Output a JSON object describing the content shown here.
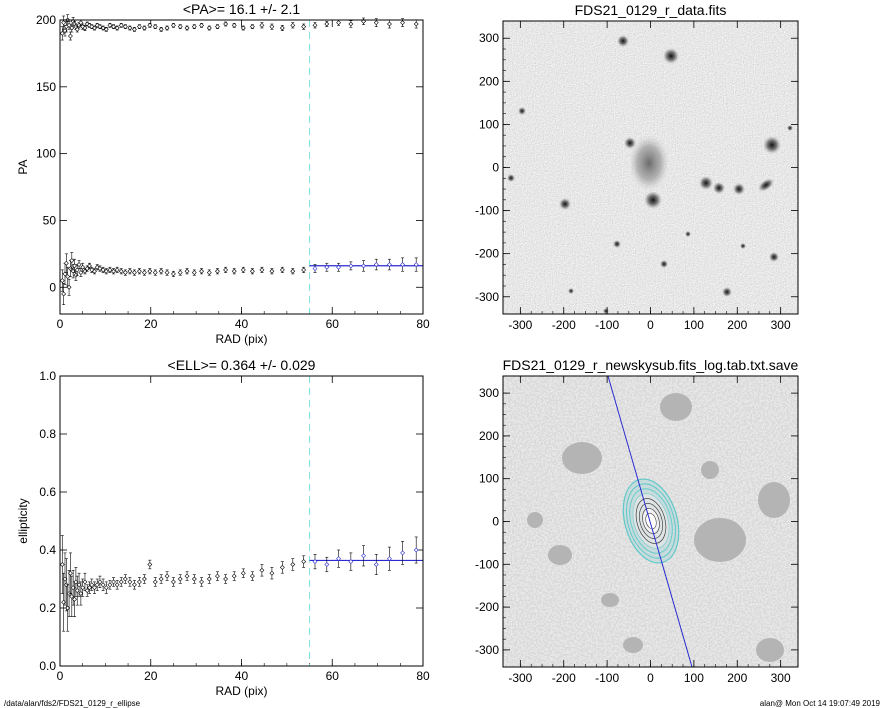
{
  "footer": {
    "left": "/data/alan/fds2/FDS21_0129_r_ellipse",
    "right": "alan@  Mon Oct 14 19:07:49 2019"
  },
  "chart_data": [
    {
      "type": "scatter",
      "title": "<PA>=  16.1 +/-   2.1",
      "xlabel": "RAD (pix)",
      "ylabel": "PA",
      "xlim": [
        0,
        80
      ],
      "ylim": [
        -20,
        200
      ],
      "xticks": [
        0,
        20,
        40,
        60,
        80
      ],
      "yticks": [
        0,
        50,
        100,
        150,
        200
      ],
      "vline_x": 55,
      "mean": 16.1,
      "mean_err": 2.1,
      "fit_range": [
        55,
        80
      ],
      "series": [
        {
          "x": [
            0.5,
            0.8,
            1.1,
            1.4,
            1.7,
            2.0,
            2.3,
            2.6,
            2.9,
            3.2,
            3.5,
            3.8,
            4.2,
            4.6,
            5.0,
            5.5,
            6.0,
            6.5,
            7.0,
            7.6,
            8.2,
            8.8,
            9.5,
            10.2,
            11.0,
            11.8,
            12.6,
            13.5,
            14.4,
            15.4,
            16.4,
            17.5,
            18.6,
            19.8,
            21.0,
            22.3,
            23.6,
            25.0,
            26.5,
            28.0,
            29.6,
            31.2,
            32.9,
            34.7,
            36.5,
            38.4,
            40.4,
            42.4,
            44.5,
            46.7,
            49.0,
            51.3,
            53.7,
            56.2,
            58.8,
            61.4,
            64.1,
            66.9,
            69.7,
            72.6,
            75.5,
            78.5
          ],
          "y": [
            190,
            198,
            192,
            195,
            200,
            196,
            188,
            194,
            199,
            197,
            195,
            193,
            196,
            198,
            195,
            194,
            197,
            196,
            195,
            194,
            196,
            195,
            194,
            193,
            196,
            195,
            194,
            196,
            195,
            194,
            193,
            195,
            194,
            196,
            195,
            193,
            194,
            196,
            195,
            194,
            195,
            196,
            194,
            195,
            197,
            196,
            194,
            195,
            196,
            195,
            194,
            196,
            195,
            196,
            197,
            198,
            197,
            199,
            198,
            197,
            198,
            197
          ],
          "err": [
            5,
            5,
            4,
            4,
            4,
            3,
            3,
            3,
            3,
            2,
            2,
            2,
            2,
            2,
            2,
            2,
            1.5,
            1.5,
            1.5,
            1.5,
            1.5,
            1.5,
            1.5,
            1.5,
            1.5,
            1.5,
            1.5,
            1.5,
            1.5,
            1.5,
            1.5,
            1.5,
            1.5,
            1.5,
            1.5,
            1.5,
            1.5,
            1.5,
            1.5,
            1.5,
            1.5,
            1.5,
            1.5,
            1.5,
            1.5,
            1.5,
            1.5,
            1.5,
            2,
            2,
            2,
            2,
            2,
            2,
            2,
            2,
            2.5,
            2.5,
            3,
            3,
            3,
            3
          ]
        },
        {
          "x": [
            0.5,
            0.8,
            1.1,
            1.4,
            1.7,
            2.0,
            2.3,
            2.6,
            2.9,
            3.2,
            3.5,
            3.8,
            4.2,
            4.6,
            5.0,
            5.5,
            6.0,
            6.5,
            7.0,
            7.6,
            8.2,
            8.8,
            9.5,
            10.2,
            11.0,
            11.8,
            12.6,
            13.5,
            14.4,
            15.4,
            16.4,
            17.5,
            18.6,
            19.8,
            21.0,
            22.3,
            23.6,
            25.0,
            26.5,
            28.0,
            29.6,
            31.2,
            32.9,
            34.7,
            36.5,
            38.4,
            40.4,
            42.4,
            44.5,
            46.7,
            49.0,
            51.3,
            53.7,
            56.2,
            58.8,
            61.4,
            64.1,
            66.9,
            69.7,
            72.6,
            75.5,
            78.5
          ],
          "y": [
            5,
            -5,
            10,
            18,
            8,
            0,
            14,
            20,
            12,
            16,
            9,
            13,
            17,
            11,
            15,
            12,
            14,
            16,
            13,
            12,
            15,
            14,
            13,
            12,
            13,
            12,
            13,
            12,
            11,
            12,
            11,
            12,
            11,
            12,
            11,
            12,
            11,
            10,
            11,
            12,
            11,
            12,
            11,
            12,
            13,
            12,
            13,
            12,
            13,
            12,
            13,
            12,
            13,
            14,
            15,
            15,
            16,
            16,
            17,
            17,
            17,
            17
          ],
          "err": [
            8,
            8,
            8,
            7,
            7,
            6,
            6,
            6,
            5,
            5,
            4,
            4,
            3,
            3,
            3,
            2,
            2,
            2,
            2,
            2,
            2,
            2,
            2,
            2,
            2,
            2,
            2,
            2,
            2,
            2,
            2,
            2,
            2,
            2,
            2,
            2,
            2,
            2,
            2,
            2,
            2,
            2,
            2,
            2,
            2,
            2,
            2,
            2,
            2,
            2,
            2,
            2,
            2,
            3,
            3,
            3,
            3,
            4,
            4,
            4,
            5,
            5
          ]
        }
      ]
    },
    {
      "type": "image",
      "title": "FDS21_0129_r_data.fits",
      "xlim": [
        -340,
        340
      ],
      "ylim": [
        -340,
        340
      ],
      "xticks": [
        -300,
        -200,
        -100,
        0,
        100,
        200,
        300
      ],
      "yticks": [
        -300,
        -200,
        -100,
        0,
        100,
        200,
        300
      ]
    },
    {
      "type": "scatter",
      "title": "<ELL>= 0.364 +/-  0.029",
      "xlabel": "RAD (pix)",
      "ylabel": "ellipticity",
      "xlim": [
        0,
        80
      ],
      "ylim": [
        0.0,
        1.0
      ],
      "xticks": [
        0,
        20,
        40,
        60,
        80
      ],
      "yticks": [
        0.0,
        0.2,
        0.4,
        0.6,
        0.8,
        1.0
      ],
      "vline_x": 55,
      "mean": 0.364,
      "mean_err": 0.029,
      "fit_range": [
        55,
        80
      ],
      "series": [
        {
          "x": [
            0.5,
            0.8,
            1.1,
            1.4,
            1.7,
            2.0,
            2.3,
            2.6,
            2.9,
            3.2,
            3.5,
            3.8,
            4.2,
            4.6,
            5.0,
            5.5,
            6.0,
            6.5,
            7.0,
            7.6,
            8.2,
            8.8,
            9.5,
            10.2,
            11.0,
            11.8,
            12.6,
            13.5,
            14.4,
            15.4,
            16.4,
            17.5,
            18.6,
            19.8,
            21.0,
            22.3,
            23.6,
            25.0,
            26.5,
            28.0,
            29.6,
            31.2,
            32.9,
            34.7,
            36.5,
            38.4,
            40.4,
            42.4,
            44.5,
            46.7,
            49.0,
            51.3,
            53.7,
            56.2,
            58.8,
            61.4,
            64.1,
            66.9,
            69.7,
            72.6,
            75.5,
            78.5
          ],
          "y": [
            0.35,
            0.22,
            0.3,
            0.28,
            0.2,
            0.25,
            0.32,
            0.24,
            0.27,
            0.23,
            0.29,
            0.26,
            0.28,
            0.25,
            0.27,
            0.29,
            0.26,
            0.27,
            0.28,
            0.27,
            0.28,
            0.29,
            0.28,
            0.27,
            0.28,
            0.29,
            0.28,
            0.29,
            0.3,
            0.29,
            0.28,
            0.29,
            0.3,
            0.35,
            0.29,
            0.3,
            0.31,
            0.29,
            0.3,
            0.31,
            0.3,
            0.29,
            0.3,
            0.31,
            0.3,
            0.31,
            0.32,
            0.31,
            0.33,
            0.32,
            0.34,
            0.35,
            0.36,
            0.36,
            0.35,
            0.37,
            0.36,
            0.38,
            0.35,
            0.37,
            0.39,
            0.4
          ],
          "err": [
            0.1,
            0.1,
            0.09,
            0.09,
            0.08,
            0.08,
            0.07,
            0.07,
            0.06,
            0.06,
            0.05,
            0.05,
            0.04,
            0.04,
            0.03,
            0.03,
            0.02,
            0.02,
            0.02,
            0.02,
            0.02,
            0.02,
            0.02,
            0.02,
            0.015,
            0.015,
            0.015,
            0.015,
            0.015,
            0.015,
            0.015,
            0.015,
            0.015,
            0.015,
            0.015,
            0.015,
            0.015,
            0.015,
            0.015,
            0.015,
            0.015,
            0.015,
            0.015,
            0.015,
            0.015,
            0.015,
            0.015,
            0.015,
            0.02,
            0.02,
            0.02,
            0.02,
            0.02,
            0.025,
            0.025,
            0.03,
            0.03,
            0.035,
            0.035,
            0.04,
            0.04,
            0.045
          ]
        }
      ]
    },
    {
      "type": "image",
      "title": "FDS21_0129_r_newskysub.fits_log.tab.txt.save",
      "xlim": [
        -340,
        340
      ],
      "ylim": [
        -340,
        340
      ],
      "xticks": [
        -300,
        -200,
        -100,
        0,
        100,
        200,
        300
      ],
      "yticks": [
        -300,
        -200,
        -100,
        0,
        100,
        200,
        300
      ]
    }
  ]
}
